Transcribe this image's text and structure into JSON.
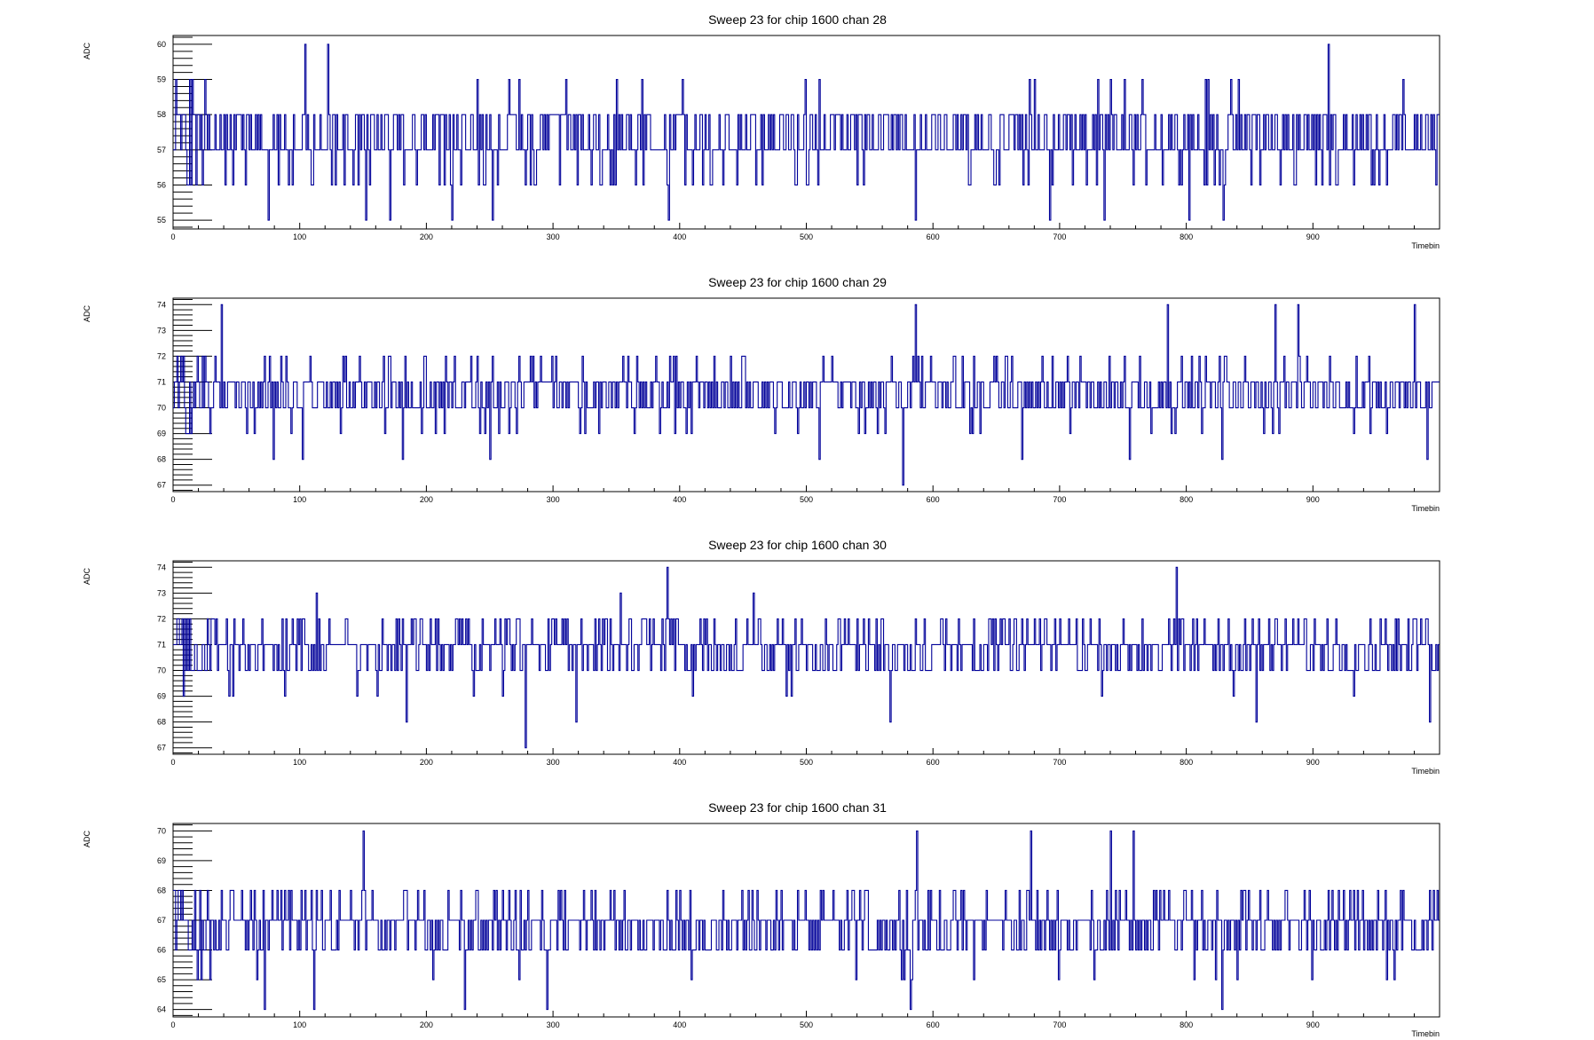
{
  "chart_data": [
    {
      "type": "line",
      "title": "Sweep 23 for chip 1600 chan 28",
      "xlabel": "Timebin",
      "ylabel": "ADC",
      "xlim": [
        0,
        1000
      ],
      "ylim": [
        54.75,
        60.25
      ],
      "xticks": [
        0,
        100,
        200,
        300,
        400,
        500,
        600,
        700,
        800,
        900
      ],
      "yticks": [
        55,
        56,
        57,
        58,
        59,
        60
      ],
      "baseline": 57.3,
      "noise_seed": 28,
      "spikes": [
        [
          104,
          60
        ],
        [
          122,
          60
        ],
        [
          75,
          55
        ],
        [
          152,
          55
        ],
        [
          171,
          55
        ],
        [
          220,
          55
        ],
        [
          252,
          55
        ],
        [
          391,
          55
        ],
        [
          586,
          55
        ],
        [
          692,
          55
        ],
        [
          735,
          55
        ],
        [
          802,
          55
        ],
        [
          829,
          55
        ],
        [
          912,
          60
        ]
      ],
      "series": [
        {
          "color": "#000099"
        }
      ]
    },
    {
      "type": "line",
      "title": "Sweep 23 for chip 1600 chan 29",
      "xlabel": "Timebin",
      "ylabel": "ADC",
      "xlim": [
        0,
        1000
      ],
      "ylim": [
        66.75,
        74.25
      ],
      "xticks": [
        0,
        100,
        200,
        300,
        400,
        500,
        600,
        700,
        800,
        900
      ],
      "yticks": [
        67,
        68,
        69,
        70,
        71,
        72,
        73,
        74
      ],
      "baseline": 70.6,
      "noise_seed": 29,
      "spikes": [
        [
          38,
          74
        ],
        [
          586,
          74
        ],
        [
          785,
          74
        ],
        [
          870,
          74
        ],
        [
          888,
          74
        ],
        [
          980,
          74
        ],
        [
          576,
          67
        ],
        [
          79,
          68
        ],
        [
          102,
          68
        ],
        [
          181,
          68
        ],
        [
          250,
          68
        ],
        [
          510,
          68
        ],
        [
          670,
          68
        ],
        [
          755,
          68
        ],
        [
          828,
          68
        ],
        [
          990,
          68
        ]
      ],
      "series": [
        {
          "color": "#000099"
        }
      ]
    },
    {
      "type": "line",
      "title": "Sweep 23 for chip 1600 chan 30",
      "xlabel": "Timebin",
      "ylabel": "ADC",
      "xlim": [
        0,
        1000
      ],
      "ylim": [
        66.75,
        74.25
      ],
      "xticks": [
        0,
        100,
        200,
        300,
        400,
        500,
        600,
        700,
        800,
        900
      ],
      "yticks": [
        67,
        68,
        69,
        70,
        71,
        72,
        73,
        74
      ],
      "baseline": 70.9,
      "noise_seed": 30,
      "spikes": [
        [
          390,
          74
        ],
        [
          792,
          74
        ],
        [
          278,
          67
        ],
        [
          184,
          68
        ],
        [
          318,
          68
        ],
        [
          566,
          68
        ],
        [
          855,
          68
        ],
        [
          992,
          68
        ],
        [
          113,
          73
        ],
        [
          353,
          73
        ],
        [
          458,
          73
        ]
      ],
      "series": [
        {
          "color": "#000099"
        }
      ]
    },
    {
      "type": "line",
      "title": "Sweep 23 for chip 1600 chan 31",
      "xlabel": "Timebin",
      "ylabel": "ADC",
      "xlim": [
        0,
        1000
      ],
      "ylim": [
        63.75,
        70.25
      ],
      "xticks": [
        0,
        100,
        200,
        300,
        400,
        500,
        600,
        700,
        800,
        900
      ],
      "yticks": [
        64,
        65,
        66,
        67,
        68,
        69,
        70
      ],
      "baseline": 66.8,
      "noise_seed": 31,
      "spikes": [
        [
          150,
          70
        ],
        [
          587,
          70
        ],
        [
          677,
          70
        ],
        [
          740,
          70
        ],
        [
          758,
          70
        ],
        [
          72,
          64
        ],
        [
          111,
          64
        ],
        [
          230,
          64
        ],
        [
          295,
          64
        ],
        [
          582,
          64
        ],
        [
          828,
          64
        ]
      ],
      "series": [
        {
          "color": "#000099"
        }
      ]
    }
  ]
}
